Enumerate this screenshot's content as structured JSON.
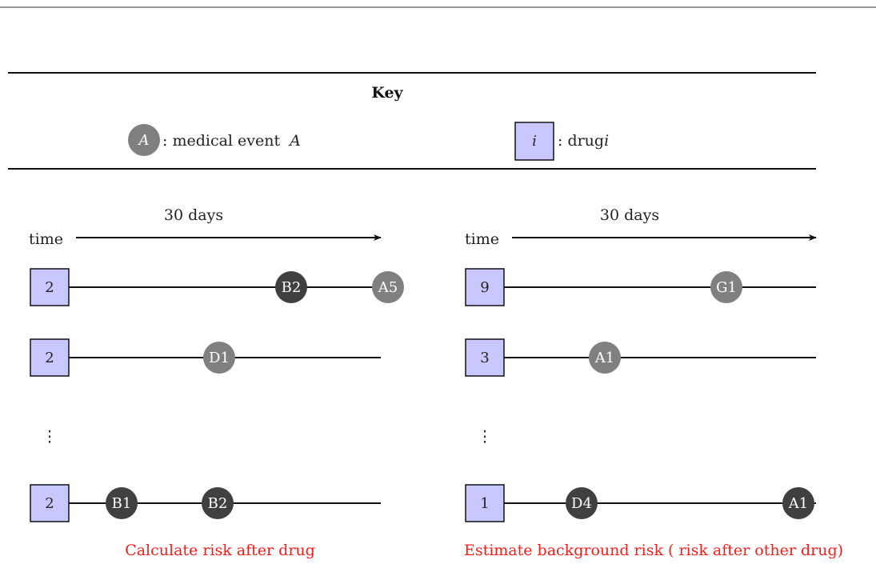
{
  "key": {
    "title": "Key",
    "event_symbol": "A",
    "event_text": ": medical event",
    "event_var": "A",
    "drug_symbol": "i",
    "drug_text": ": drug",
    "drug_var": "i"
  },
  "colors": {
    "drug_fill": "#c8c8ff",
    "event_light": "#808080",
    "event_dark": "#404040",
    "caption": "#ff1a1a"
  },
  "panels": [
    {
      "duration_label": "30 days",
      "time_label": "time",
      "caption": "Calculate risk after drug",
      "rows": [
        {
          "drug": "2",
          "events": [
            {
              "label": "B2",
              "shade": "dark"
            },
            {
              "label": "A5",
              "shade": "light"
            }
          ]
        },
        {
          "drug": "2",
          "events": [
            {
              "label": "D1",
              "shade": "light"
            }
          ]
        },
        {
          "drug": "2",
          "events": [
            {
              "label": "B1",
              "shade": "dark"
            },
            {
              "label": "B2",
              "shade": "dark"
            }
          ]
        }
      ]
    },
    {
      "duration_label": "30 days",
      "time_label": "time",
      "caption": "Estimate background risk ( risk after other drug)",
      "rows": [
        {
          "drug": "9",
          "events": [
            {
              "label": "G1",
              "shade": "light"
            }
          ]
        },
        {
          "drug": "3",
          "events": [
            {
              "label": "A1",
              "shade": "light"
            }
          ]
        },
        {
          "drug": "1",
          "events": [
            {
              "label": "D4",
              "shade": "dark"
            },
            {
              "label": "A1",
              "shade": "dark"
            }
          ]
        }
      ]
    }
  ],
  "ellipsis": "⋮"
}
